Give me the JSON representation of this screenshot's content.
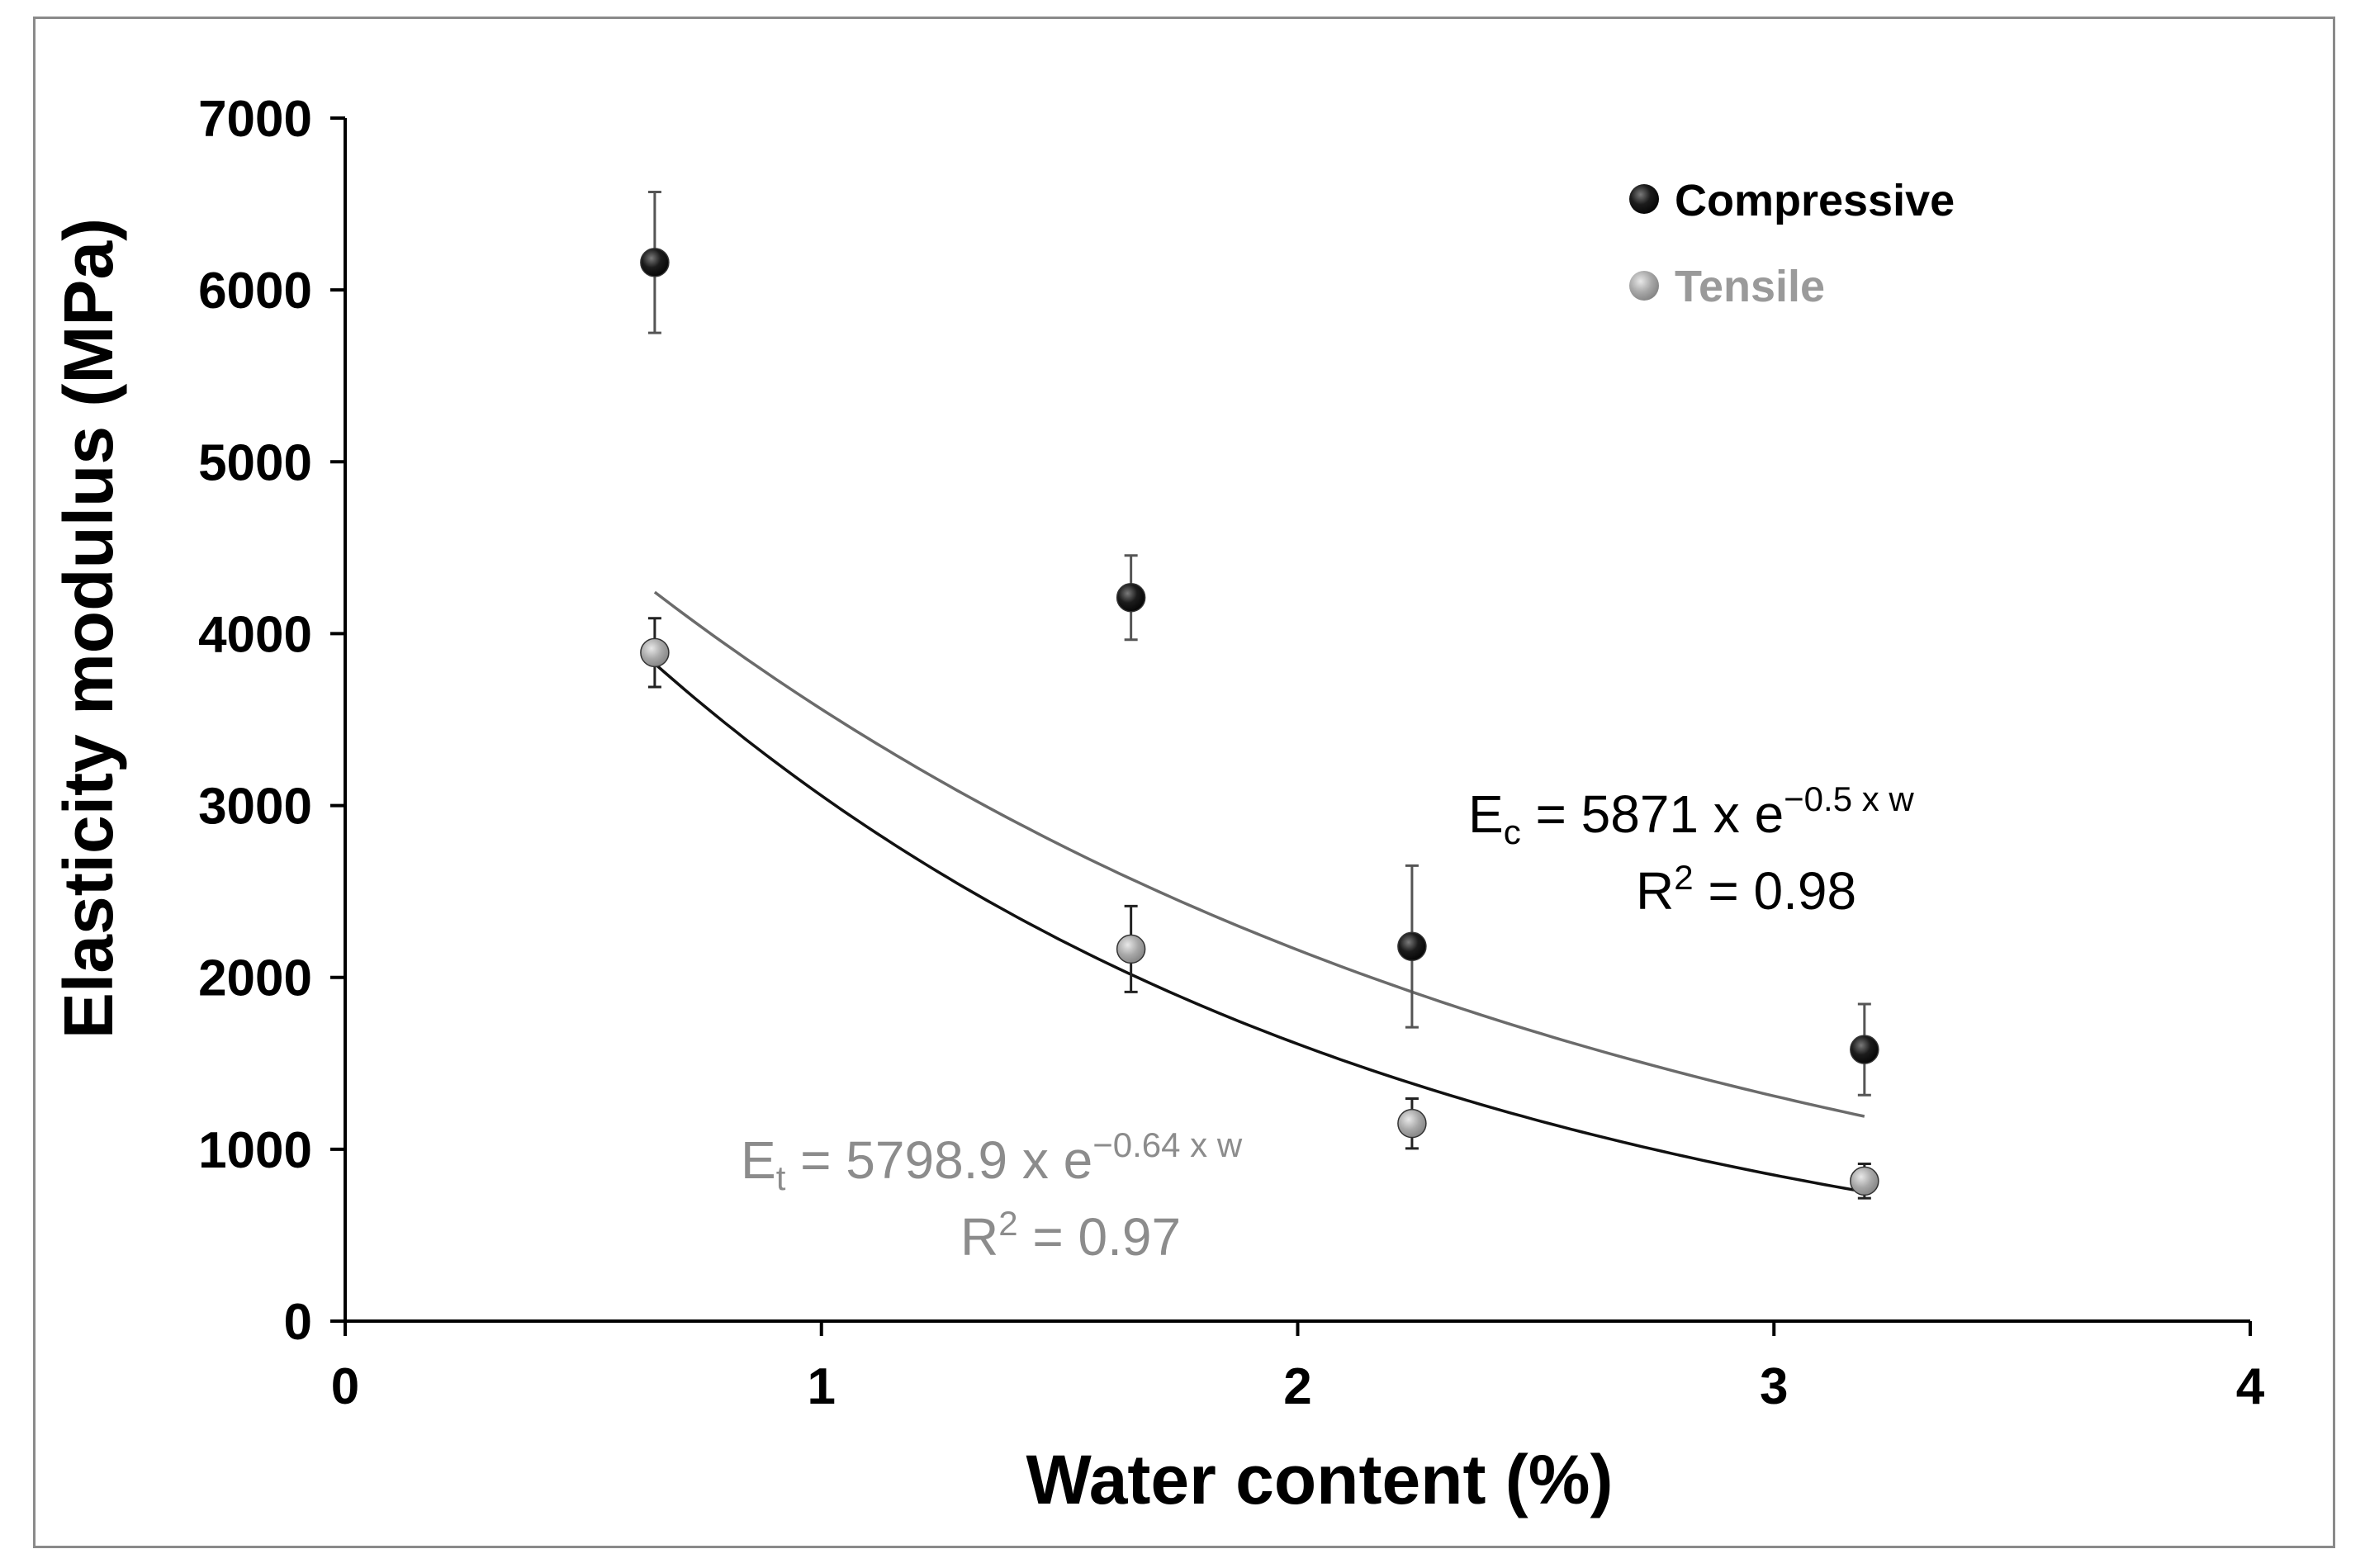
{
  "chart_data": {
    "type": "scatter",
    "xlabel": "Water content (%)",
    "ylabel": "Elasticity modulus (MPa)",
    "xlim": [
      0,
      4
    ],
    "ylim": [
      0,
      7000
    ],
    "x_ticks": [
      "0",
      "1",
      "2",
      "3",
      "4"
    ],
    "y_ticks": [
      "0",
      "1000",
      "2000",
      "3000",
      "4000",
      "5000",
      "6000",
      "7000"
    ],
    "grid": false,
    "legend_position": "top-right",
    "series": [
      {
        "name": "Compressive",
        "color": "#111111",
        "x": [
          0.65,
          1.65,
          2.24,
          3.19
        ],
        "y": [
          6160,
          4210,
          2180,
          1580
        ],
        "error": [
          410,
          245,
          470,
          265
        ],
        "trendline": {
          "type": "exponential",
          "a": 5871,
          "b": -0.5,
          "color": "#6b6b6b",
          "x_range": [
            0.65,
            3.19
          ]
        }
      },
      {
        "name": "Tensile",
        "color": "#9a9a9a",
        "x": [
          0.65,
          1.65,
          2.24,
          3.19
        ],
        "y": [
          3890,
          2165,
          1150,
          815
        ],
        "error": [
          200,
          250,
          145,
          100
        ],
        "trendline": {
          "type": "exponential",
          "a": 5798.9,
          "b": -0.64,
          "color": "#111111",
          "x_range": [
            0.65,
            3.19
          ]
        }
      }
    ],
    "annotations": {
      "compressive": {
        "E": "E",
        "sub": "c",
        "main": " = 5871 x e",
        "exp": "−0.5 x w",
        "r2_prefix": "R",
        "r2_sup": "2",
        "r2_rest": " = 0.98",
        "color": "#000000"
      },
      "tensile": {
        "E": "E",
        "sub": "t",
        "main": " = 5798.9 x e",
        "exp": "−0.64 x w",
        "r2_prefix": "R",
        "r2_sup": "2",
        "r2_rest": " = 0.97",
        "color": "#8c8c8c"
      }
    }
  }
}
